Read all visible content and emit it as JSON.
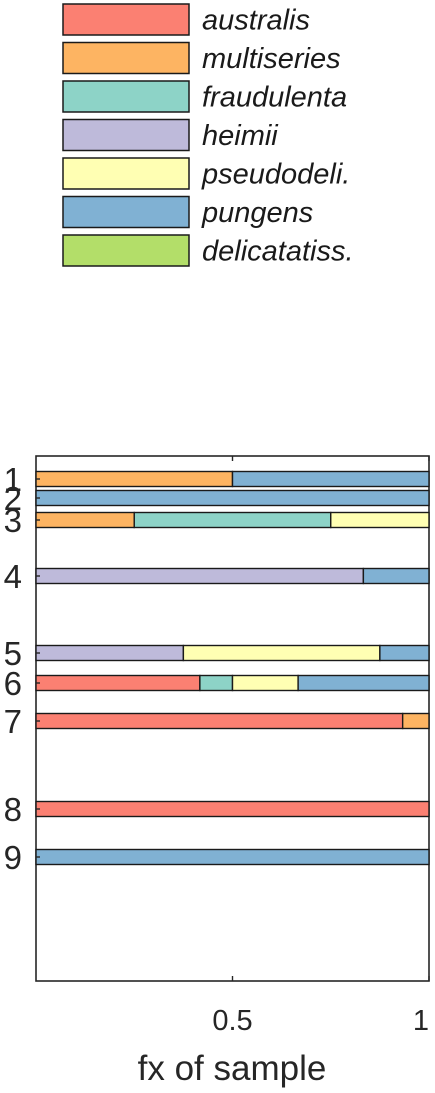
{
  "chart_data": {
    "type": "bar",
    "orientation": "horizontal",
    "stacked": true,
    "xlabel": "fx of sample",
    "xlim": [
      0,
      1
    ],
    "xticks": [
      0.5,
      1
    ],
    "xtick_labels": [
      "0.5",
      "1"
    ],
    "legend_placement": "top",
    "grid": false,
    "series_order": [
      "australis",
      "multiseries",
      "fraudulenta",
      "heimii",
      "pseudodeli.",
      "pungens",
      "delicatatiss."
    ],
    "colors": {
      "australis": "#fb8072",
      "multiseries": "#fdb462",
      "fraudulenta": "#8dd3c7",
      "heimii": "#bebada",
      "pseudodeli.": "#ffffb3",
      "pungens": "#80b1d3",
      "delicatatiss.": "#b3de69"
    },
    "legend": [
      {
        "name": "australis",
        "color": "#fb8072"
      },
      {
        "name": "multiseries",
        "color": "#fdb462"
      },
      {
        "name": "fraudulenta",
        "color": "#8dd3c7"
      },
      {
        "name": "heimii",
        "color": "#bebada"
      },
      {
        "name": "pseudodeli.",
        "color": "#ffffb3"
      },
      {
        "name": "pungens",
        "color": "#80b1d3"
      },
      {
        "name": "delicatatiss.",
        "color": "#b3de69"
      }
    ],
    "rows": [
      {
        "label": "1",
        "segments": [
          {
            "series": "multiseries",
            "value": 0.5
          },
          {
            "series": "pungens",
            "value": 0.5
          }
        ]
      },
      {
        "label": "2",
        "segments": [
          {
            "series": "pungens",
            "value": 1.0
          }
        ]
      },
      {
        "label": "3",
        "segments": [
          {
            "series": "multiseries",
            "value": 0.25
          },
          {
            "series": "fraudulenta",
            "value": 0.5
          },
          {
            "series": "pseudodeli.",
            "value": 0.25
          }
        ]
      },
      {
        "label": "4",
        "segments": [
          {
            "series": "heimii",
            "value": 0.833
          },
          {
            "series": "pungens",
            "value": 0.167
          }
        ]
      },
      {
        "label": "5",
        "segments": [
          {
            "series": "heimii",
            "value": 0.375
          },
          {
            "series": "pseudodeli.",
            "value": 0.5
          },
          {
            "series": "pungens",
            "value": 0.125
          }
        ]
      },
      {
        "label": "6",
        "segments": [
          {
            "series": "australis",
            "value": 0.417
          },
          {
            "series": "fraudulenta",
            "value": 0.083
          },
          {
            "series": "pseudodeli.",
            "value": 0.167
          },
          {
            "series": "pungens",
            "value": 0.333
          }
        ]
      },
      {
        "label": "7",
        "segments": [
          {
            "series": "australis",
            "value": 0.933
          },
          {
            "series": "multiseries",
            "value": 0.067
          }
        ]
      },
      {
        "label": "8",
        "segments": [
          {
            "series": "australis",
            "value": 1.0
          }
        ]
      },
      {
        "label": "9",
        "segments": [
          {
            "series": "pungens",
            "value": 1.0
          }
        ]
      }
    ]
  }
}
